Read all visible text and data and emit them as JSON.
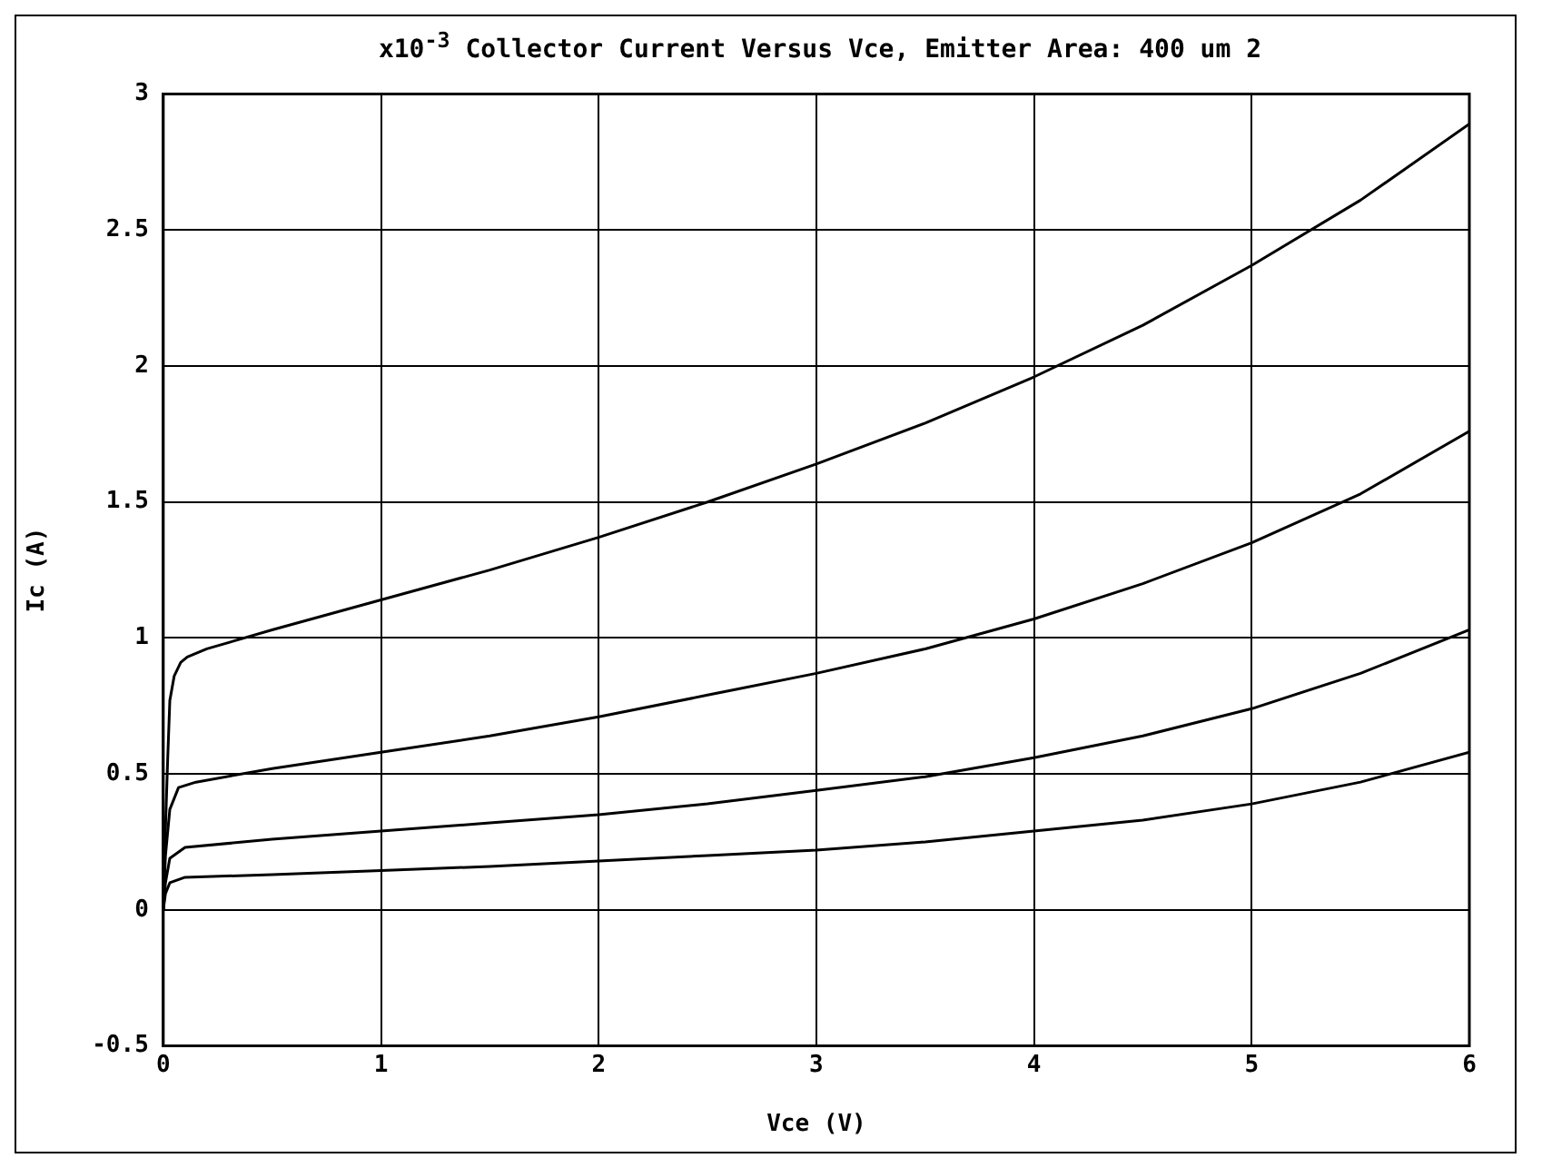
{
  "chart_data": {
    "type": "line",
    "title": "x10$^{-3}$ Collector Current Versus Vce,  Emitter Area: 400 um 2",
    "xlabel": "Vce (V)",
    "ylabel": "Ic (A)",
    "xlim": [
      0,
      6
    ],
    "xticks": [
      0,
      1,
      2,
      3,
      4,
      5,
      6
    ],
    "ylim": [
      -0.5,
      3
    ],
    "yticks": [
      -0.5,
      0,
      0.5,
      1,
      1.5,
      2,
      2.5,
      3
    ],
    "grid": true,
    "legend": false,
    "marker": "none",
    "line_style": "solid",
    "series": [
      {
        "color": "#000000",
        "x": [
          0,
          0.01,
          0.02,
          0.03,
          0.05,
          0.08,
          0.11,
          0.2,
          0.5,
          1,
          1.5,
          2,
          2.5,
          3,
          3.5,
          4,
          4.5,
          5,
          5.5,
          6
        ],
        "values": [
          0,
          0.3,
          0.55,
          0.77,
          0.86,
          0.91,
          0.93,
          0.96,
          1.03,
          1.14,
          1.25,
          1.37,
          1.5,
          1.64,
          1.79,
          1.96,
          2.15,
          2.37,
          2.61,
          2.89
        ]
      },
      {
        "color": "#000000",
        "x": [
          0,
          0.01,
          0.03,
          0.07,
          0.15,
          0.5,
          1,
          1.5,
          2,
          2.5,
          3,
          3.5,
          4,
          4.5,
          5,
          5.5,
          6
        ],
        "values": [
          0,
          0.2,
          0.37,
          0.45,
          0.47,
          0.52,
          0.58,
          0.64,
          0.71,
          0.79,
          0.87,
          0.96,
          1.07,
          1.2,
          1.35,
          1.53,
          1.76
        ]
      },
      {
        "color": "#000000",
        "x": [
          0,
          0.01,
          0.03,
          0.1,
          0.5,
          1,
          1.5,
          2,
          2.5,
          3,
          3.5,
          4,
          4.5,
          5,
          5.5,
          6
        ],
        "values": [
          0,
          0.1,
          0.19,
          0.23,
          0.26,
          0.29,
          0.32,
          0.35,
          0.39,
          0.44,
          0.49,
          0.56,
          0.64,
          0.74,
          0.87,
          1.03
        ]
      },
      {
        "color": "#000000",
        "x": [
          0,
          0.01,
          0.03,
          0.1,
          0.5,
          1,
          1.5,
          2,
          2.5,
          3,
          3.5,
          4,
          4.5,
          5,
          5.5,
          6
        ],
        "values": [
          0,
          0.06,
          0.1,
          0.12,
          0.13,
          0.145,
          0.16,
          0.18,
          0.2,
          0.22,
          0.25,
          0.29,
          0.33,
          0.39,
          0.47,
          0.58
        ]
      }
    ]
  }
}
